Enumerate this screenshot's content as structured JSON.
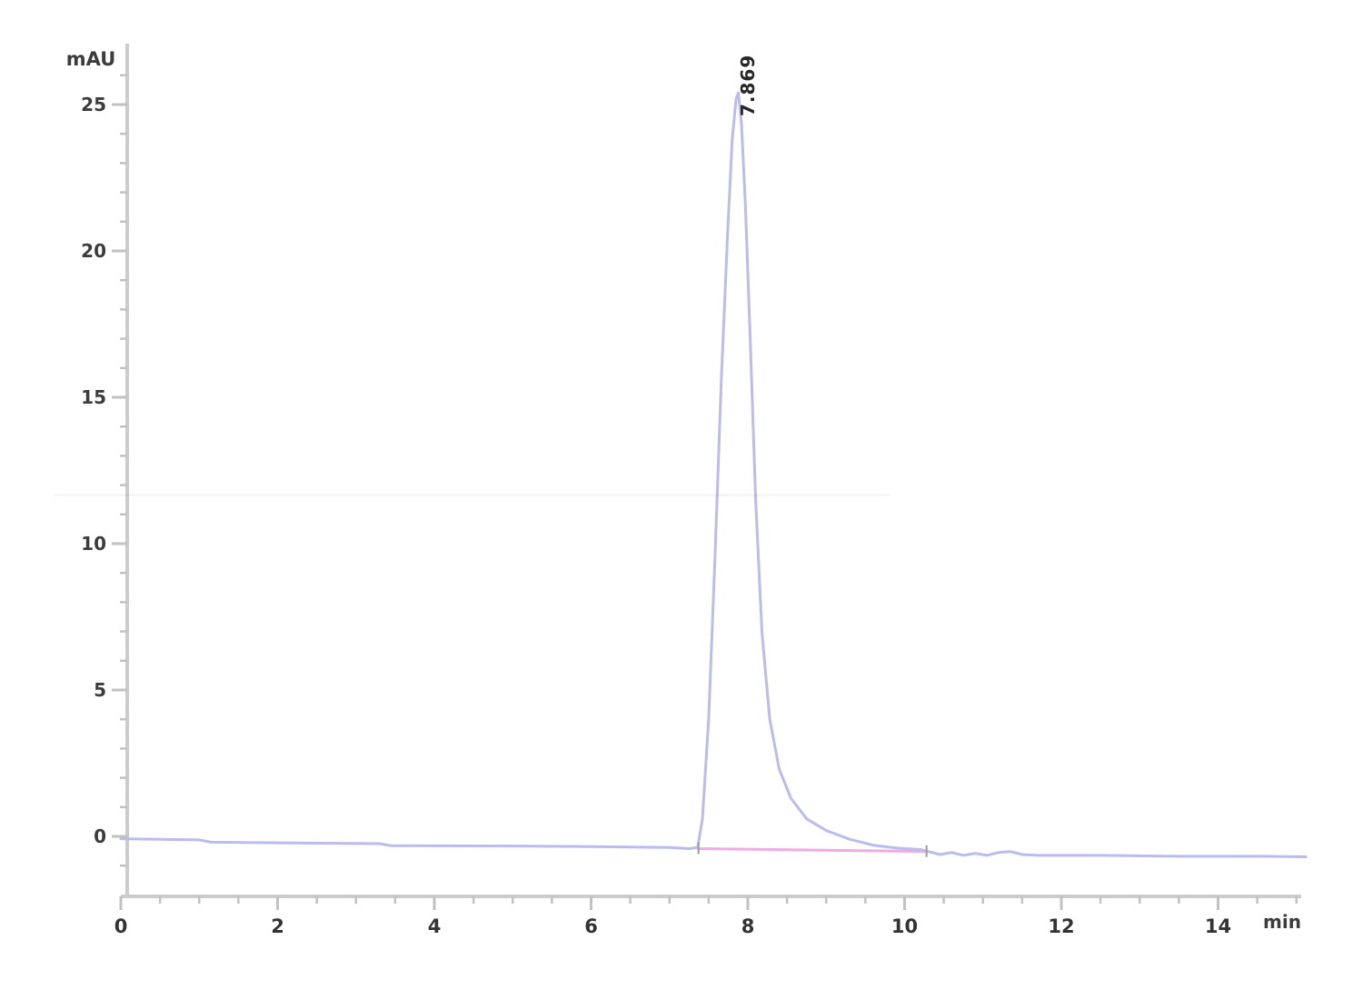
{
  "figure": {
    "y_axis_title": "mAU",
    "x_axis_title": "min",
    "peak_label": "7.869",
    "background_color": "#ffffff",
    "trace_color": "#b9bcee",
    "baseline_color": "#f0abe3",
    "axis_color": "#cccccc",
    "tick_color": "#c2c2c2",
    "label_color": "#3c3c3c"
  },
  "chart_data": {
    "type": "line",
    "title": "",
    "xlabel": "min",
    "ylabel": "mAU",
    "xlim": [
      0,
      15.1
    ],
    "ylim": [
      -2,
      27
    ],
    "grid": "off",
    "legend": "none",
    "x_ticks_major": [
      0,
      2,
      4,
      6,
      8,
      10,
      12,
      14
    ],
    "x_tick_labels": [
      "0",
      "2",
      "4",
      "6",
      "8",
      "10",
      "12",
      "14"
    ],
    "x_minor_step": 0.5,
    "y_ticks_major": [
      0,
      5,
      10,
      15,
      20,
      25
    ],
    "y_tick_labels": [
      "0",
      "5",
      "10",
      "15",
      "20",
      "25"
    ],
    "y_minor_step": 1,
    "peaks": [
      {
        "retention_time": 7.869,
        "label": "7.869",
        "apex_mAU": 25.4,
        "start_min": 7.37,
        "end_min": 10.28
      }
    ],
    "series": [
      {
        "name": "uv-signal",
        "color": "#b9bcee",
        "points": [
          [
            0.0,
            -0.08
          ],
          [
            0.5,
            -0.1
          ],
          [
            1.0,
            -0.12
          ],
          [
            1.15,
            -0.2
          ],
          [
            2.0,
            -0.22
          ],
          [
            3.3,
            -0.25
          ],
          [
            3.45,
            -0.32
          ],
          [
            5.0,
            -0.33
          ],
          [
            6.0,
            -0.35
          ],
          [
            7.0,
            -0.38
          ],
          [
            7.25,
            -0.42
          ],
          [
            7.36,
            -0.38
          ],
          [
            7.42,
            0.6
          ],
          [
            7.5,
            4.0
          ],
          [
            7.58,
            9.5
          ],
          [
            7.66,
            15.5
          ],
          [
            7.74,
            20.5
          ],
          [
            7.8,
            23.8
          ],
          [
            7.85,
            25.2
          ],
          [
            7.88,
            25.4
          ],
          [
            7.92,
            24.3
          ],
          [
            7.97,
            21.5
          ],
          [
            8.03,
            17.0
          ],
          [
            8.1,
            11.5
          ],
          [
            8.18,
            7.0
          ],
          [
            8.28,
            4.0
          ],
          [
            8.4,
            2.3
          ],
          [
            8.55,
            1.3
          ],
          [
            8.75,
            0.6
          ],
          [
            9.0,
            0.2
          ],
          [
            9.3,
            -0.1
          ],
          [
            9.6,
            -0.3
          ],
          [
            9.9,
            -0.4
          ],
          [
            10.2,
            -0.45
          ],
          [
            10.28,
            -0.5
          ],
          [
            10.45,
            -0.62
          ],
          [
            10.6,
            -0.55
          ],
          [
            10.75,
            -0.65
          ],
          [
            10.9,
            -0.58
          ],
          [
            11.05,
            -0.65
          ],
          [
            11.2,
            -0.55
          ],
          [
            11.35,
            -0.52
          ],
          [
            11.5,
            -0.62
          ],
          [
            11.7,
            -0.65
          ],
          [
            12.5,
            -0.65
          ],
          [
            13.5,
            -0.68
          ],
          [
            14.5,
            -0.68
          ],
          [
            15.12,
            -0.7
          ]
        ]
      },
      {
        "name": "integration-baseline",
        "color": "#f0abe3",
        "points": [
          [
            7.37,
            -0.42
          ],
          [
            10.28,
            -0.52
          ]
        ]
      }
    ],
    "integration_marks": [
      {
        "t": 7.37,
        "v": -0.42
      },
      {
        "t": 10.28,
        "v": -0.52
      }
    ]
  }
}
